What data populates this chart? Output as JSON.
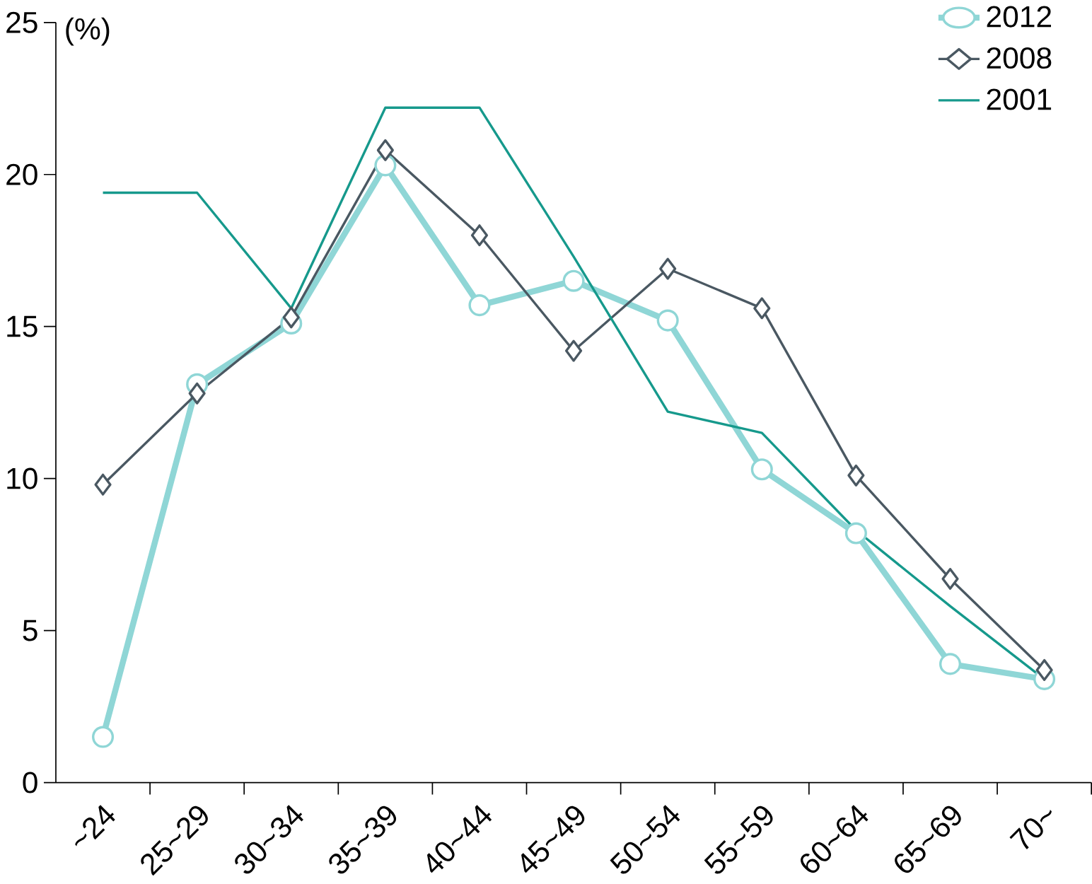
{
  "chart_data": {
    "type": "line",
    "ylabel": "(%)",
    "categories": [
      "~24",
      "25~29",
      "30~34",
      "35~39",
      "40~44",
      "45~49",
      "50~54",
      "55~59",
      "60~64",
      "65~69",
      "70~"
    ],
    "series": [
      {
        "name": "2012",
        "color": "#8fd6d6",
        "marker": "circle",
        "values": [
          1.5,
          13.1,
          15.1,
          20.3,
          15.7,
          16.5,
          15.2,
          10.3,
          8.2,
          3.9,
          3.4
        ]
      },
      {
        "name": "2008",
        "color": "#4a5862",
        "marker": "diamond",
        "values": [
          9.8,
          12.8,
          15.3,
          20.8,
          18.0,
          14.2,
          16.9,
          15.6,
          10.1,
          6.7,
          3.7
        ]
      },
      {
        "name": "2001",
        "color": "#16998c",
        "marker": "none",
        "values": [
          19.4,
          19.4,
          15.6,
          22.2,
          22.2,
          17.3,
          12.2,
          11.5,
          8.3,
          5.8,
          3.4
        ]
      }
    ],
    "ylim": [
      0,
      25
    ],
    "yticks": [
      0,
      5,
      10,
      15,
      20,
      25
    ],
    "grid": false,
    "legend": "top right"
  }
}
